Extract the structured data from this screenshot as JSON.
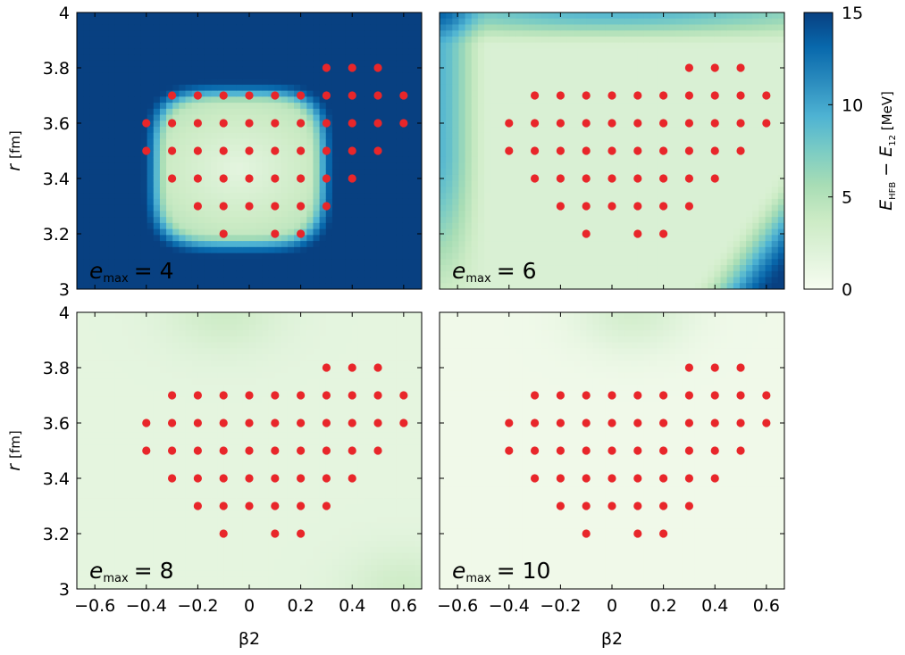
{
  "chart_data": {
    "type": "heatmap",
    "description": "E_HFB - E_12 energy difference surfaces in the (beta2, r) plane for four e_max truncations, with red markers at sampled lattice points",
    "x_label": "β2",
    "y_label_main": "r",
    "y_label_unit": "[fm]",
    "xlim": [
      -0.67,
      0.67
    ],
    "ylim": [
      3.0,
      4.0
    ],
    "x_ticks": [
      -0.6,
      -0.4,
      -0.2,
      0,
      0.2,
      0.4,
      0.6
    ],
    "x_tick_labels": [
      "−0.6",
      "−0.4",
      "−0.2",
      "0",
      "0.2",
      "0.4",
      "0.6"
    ],
    "y_ticks": [
      3.0,
      3.2,
      3.4,
      3.6,
      3.8,
      4.0
    ],
    "y_tick_labels": [
      "3",
      "3.2",
      "3.4",
      "3.6",
      "3.8",
      "4"
    ],
    "colorbar": {
      "label_main": "E",
      "label_sub1": "HFB",
      "label_sub2": "12",
      "label_minus": "−",
      "label_unit": "[MeV]",
      "range": [
        0,
        15
      ],
      "ticks": [
        0,
        5,
        10,
        15
      ],
      "tick_labels": [
        "0",
        "5",
        "10",
        "15"
      ],
      "colors": [
        "#f7fcf0",
        "#e0f3db",
        "#ccebc5",
        "#a8ddb5",
        "#7bccc4",
        "#4eb3d3",
        "#2b8cbe",
        "#0868ac",
        "#084081"
      ]
    },
    "marker_color": "#e8262a",
    "sample_points": [
      {
        "r": 3.8,
        "beta2": [
          0.3,
          0.4,
          0.5
        ]
      },
      {
        "r": 3.7,
        "beta2": [
          -0.3,
          -0.2,
          -0.1,
          0.0,
          0.1,
          0.2,
          0.3,
          0.4,
          0.5,
          0.6
        ]
      },
      {
        "r": 3.6,
        "beta2": [
          -0.4,
          -0.3,
          -0.2,
          -0.1,
          0.0,
          0.1,
          0.2,
          0.3,
          0.4,
          0.5,
          0.6
        ]
      },
      {
        "r": 3.5,
        "beta2": [
          -0.4,
          -0.3,
          -0.2,
          -0.1,
          0.0,
          0.1,
          0.2,
          0.3,
          0.4,
          0.5
        ]
      },
      {
        "r": 3.4,
        "beta2": [
          -0.3,
          -0.2,
          -0.1,
          0.0,
          0.1,
          0.2,
          0.3,
          0.4
        ]
      },
      {
        "r": 3.3,
        "beta2": [
          -0.2,
          -0.1,
          0.0,
          0.1,
          0.2,
          0.3
        ]
      },
      {
        "r": 3.2,
        "beta2": [
          -0.1,
          0.1,
          0.2
        ]
      }
    ],
    "panels": [
      {
        "label_var": "e",
        "label_sub": "max",
        "label_eq": "= 4",
        "background_energy": 15,
        "features": [
          {
            "kind": "valley",
            "beta2": [
              -0.4,
              0.32
            ],
            "r": [
              3.13,
              3.74
            ],
            "min_energy": 1.5
          }
        ]
      },
      {
        "label_var": "e",
        "label_sub": "max",
        "label_eq": "= 6",
        "background_energy": 2.5,
        "features": [
          {
            "kind": "high-top",
            "r_from": 3.87,
            "max_energy": 9
          },
          {
            "kind": "high-left",
            "beta2_to": -0.47,
            "max_energy": 9
          },
          {
            "kind": "high-lower-right",
            "max_energy": 15
          }
        ]
      },
      {
        "label_var": "e",
        "label_sub": "max",
        "label_eq": "= 8",
        "background_energy": 1.5,
        "features": [
          {
            "kind": "bump-top",
            "beta2": -0.1,
            "r": 4.0,
            "max_energy": 3.5
          },
          {
            "kind": "bump-lower-right",
            "beta2": 0.6,
            "r": 3.0,
            "max_energy": 3.5
          }
        ]
      },
      {
        "label_var": "e",
        "label_sub": "max",
        "label_eq": "= 10",
        "background_energy": 0.6,
        "features": [
          {
            "kind": "bump-top",
            "beta2": 0.08,
            "r": 4.0,
            "max_energy": 3
          }
        ]
      }
    ]
  }
}
